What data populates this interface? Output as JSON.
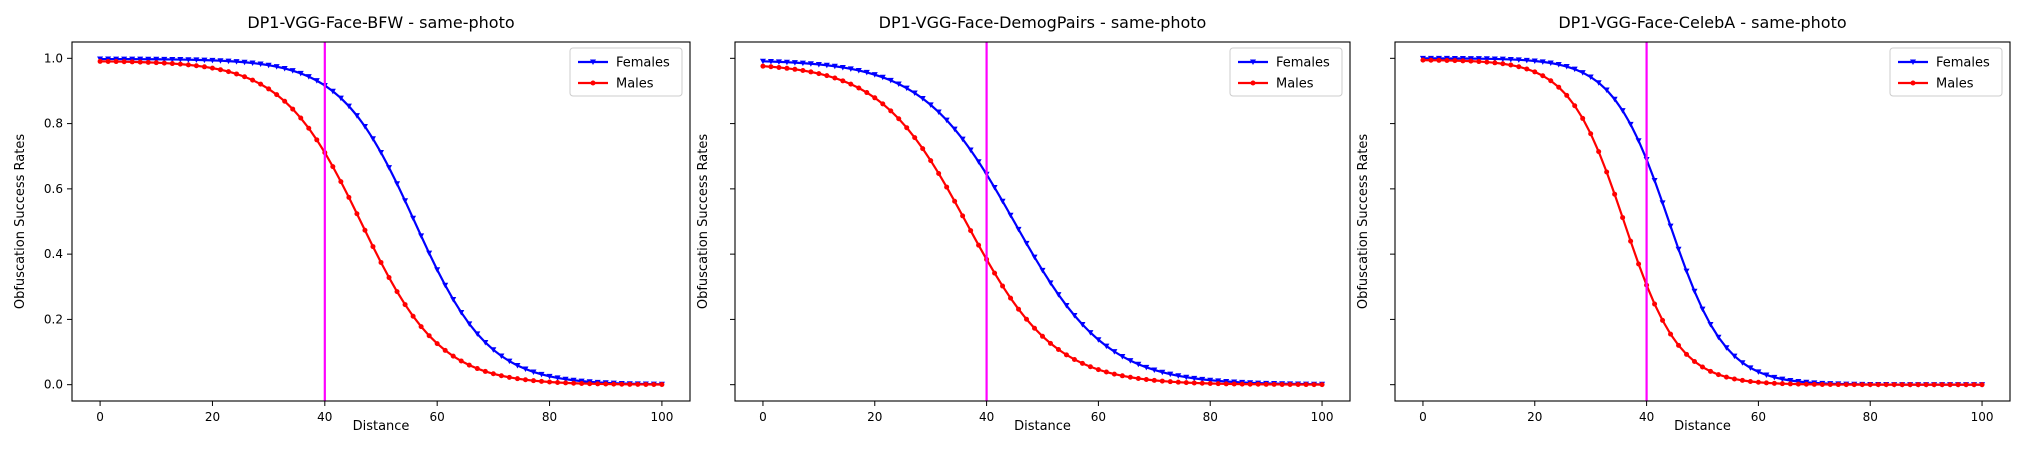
{
  "chart_data": [
    {
      "type": "line",
      "title": "DP1-VGG-Face-BFW - same-photo",
      "xlabel": "Distance",
      "ylabel": "Obfuscation Success Rates",
      "xlim": [
        -5,
        105
      ],
      "ylim": [
        -0.05,
        1.05
      ],
      "xticks": [
        "0",
        "20",
        "40",
        "60",
        "80",
        "100"
      ],
      "yticks": [
        "0.0",
        "0.2",
        "0.4",
        "0.6",
        "0.8",
        "1.0"
      ],
      "grid": false,
      "legend": "top-right",
      "vline": {
        "x": 40,
        "color": "#ff00ff"
      },
      "series": [
        {
          "name": "Females",
          "color": "#0000ff",
          "marker": "triangle-down",
          "sigmoid": {
            "mid": 56,
            "width": 6.6,
            "top": 0.998,
            "bottom": 0.0
          }
        },
        {
          "name": "Males",
          "color": "#ff0000",
          "marker": "circle",
          "sigmoid": {
            "mid": 46.5,
            "width": 7.0,
            "top": 0.992,
            "bottom": 0.0
          }
        }
      ]
    },
    {
      "type": "line",
      "title": "DP1-VGG-Face-DemogPairs - same-photo",
      "xlabel": "Distance",
      "ylabel": "Obfuscation Success Rates",
      "xlim": [
        -5,
        105
      ],
      "ylim": [
        -0.05,
        1.05
      ],
      "xticks": [
        "0",
        "20",
        "40",
        "60",
        "80",
        "100"
      ],
      "yticks": [
        "0.0",
        "0.2",
        "0.4",
        "0.6",
        "0.8",
        "1.0"
      ],
      "grid": false,
      "legend": "top-right",
      "vline": {
        "x": 40,
        "color": "#ff00ff"
      },
      "series": [
        {
          "name": "Females",
          "color": "#0000ff",
          "marker": "triangle-down",
          "sigmoid": {
            "mid": 45,
            "width": 8.2,
            "top": 0.995,
            "bottom": 0.0
          }
        },
        {
          "name": "Males",
          "color": "#ff0000",
          "marker": "circle",
          "sigmoid": {
            "mid": 36.5,
            "width": 7.8,
            "top": 0.985,
            "bottom": 0.0
          }
        }
      ]
    },
    {
      "type": "line",
      "title": "DP1-VGG-Face-CelebA - same-photo",
      "xlabel": "Distance",
      "ylabel": "Obfuscation Success Rates",
      "xlim": [
        -5,
        105
      ],
      "ylim": [
        -0.05,
        1.05
      ],
      "xticks": [
        "0",
        "20",
        "40",
        "60",
        "80",
        "100"
      ],
      "yticks": [
        "0.0",
        "0.2",
        "0.4",
        "0.6",
        "0.8",
        "1.0"
      ],
      "grid": false,
      "legend": "top-right",
      "vline": {
        "x": 40,
        "color": "#ff00ff"
      },
      "series": [
        {
          "name": "Females",
          "color": "#0000ff",
          "marker": "triangle-down",
          "sigmoid": {
            "mid": 44,
            "width": 5.0,
            "top": 1.0,
            "bottom": 0.0
          }
        },
        {
          "name": "Males",
          "color": "#ff0000",
          "marker": "circle",
          "sigmoid": {
            "mid": 36,
            "width": 4.9,
            "top": 0.995,
            "bottom": 0.0
          }
        }
      ]
    }
  ]
}
